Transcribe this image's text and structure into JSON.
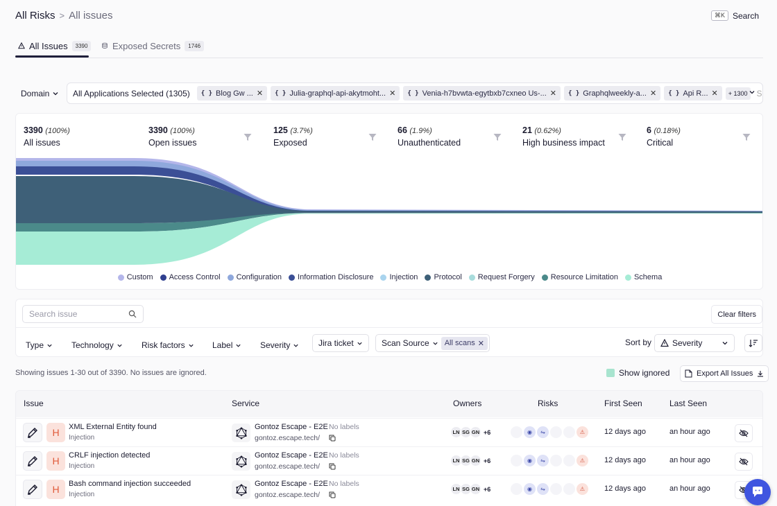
{
  "breadcrumb": {
    "root": "All Risks",
    "separator": ">",
    "current": "All issues"
  },
  "search": {
    "shortcut": "⌘K",
    "label": "Search"
  },
  "tabs": [
    {
      "label": "All Issues",
      "count": "3390",
      "icon": "warning-triangle-icon",
      "active": true
    },
    {
      "label": "Exposed Secrets",
      "count": "1746",
      "icon": "database-icon",
      "active": false
    }
  ],
  "domain": {
    "label": "Domain"
  },
  "applications": {
    "summary": "All Applications Selected (1305)",
    "chips": [
      "Blog Gw ...",
      "Julia-graphql-api-akytmoht...",
      "Venia-h7bvwta-egytbxb7cxneo Us-...",
      "Graphqlweekly-a...",
      "Api R..."
    ],
    "more": "+ 1300",
    "search_placeholder": "Se"
  },
  "funnel": {
    "stats": [
      {
        "value": "3390",
        "pct": "(100%)",
        "label": "All issues"
      },
      {
        "value": "3390",
        "pct": "(100%)",
        "label": "Open issues"
      },
      {
        "value": "125",
        "pct": "(3.7%)",
        "label": "Exposed"
      },
      {
        "value": "66",
        "pct": "(1.9%)",
        "label": "Unauthenticated"
      },
      {
        "value": "21",
        "pct": "(0.62%)",
        "label": "High business impact"
      },
      {
        "value": "6",
        "pct": "(0.18%)",
        "label": "Critical"
      }
    ],
    "legend": [
      {
        "label": "Custom",
        "color": "#b4b6ea"
      },
      {
        "label": "Access Control",
        "color": "#2f3f8f"
      },
      {
        "label": "Configuration",
        "color": "#8fa8dc"
      },
      {
        "label": "Information Disclosure",
        "color": "#3b4f96"
      },
      {
        "label": "Injection",
        "color": "#a9d4ee"
      },
      {
        "label": "Protocol",
        "color": "#3e6078"
      },
      {
        "label": "Request Forgery",
        "color": "#a8dcdc"
      },
      {
        "label": "Resource Limitation",
        "color": "#4b8a8a"
      },
      {
        "label": "Schema",
        "color": "#a6ecd6"
      }
    ]
  },
  "filters": {
    "search_placeholder": "Search issue",
    "clear": "Clear filters",
    "buttons": [
      "Type",
      "Technology",
      "Risk factors",
      "Label",
      "Severity"
    ],
    "jira": "Jira ticket",
    "scan_source": "Scan Source",
    "all_scans": "All scans",
    "sort_by": "Sort by",
    "sort_value": "Severity"
  },
  "summary": {
    "showing": "Showing issues 1-30 out of 3390. No issues are ignored.",
    "show_ignored": "Show ignored",
    "export": "Export All Issues"
  },
  "table": {
    "headers": [
      "Issue",
      "Service",
      "Owners",
      "Risks",
      "First Seen",
      "Last Seen"
    ],
    "rows": [
      {
        "severity": "H",
        "title": "XML External Entity found",
        "category": "Injection",
        "service": "Gontoz Escape - E2E",
        "labels": "No labels",
        "url": "gontoz.escape.tech/",
        "owners": [
          "LN",
          "SG",
          "GN"
        ],
        "owners_more": "+6",
        "first_seen": "12 days ago",
        "last_seen": "an hour ago"
      },
      {
        "severity": "H",
        "title": "CRLF injection detected",
        "category": "Injection",
        "service": "Gontoz Escape - E2E",
        "labels": "No labels",
        "url": "gontoz.escape.tech/",
        "owners": [
          "LN",
          "SG",
          "GN"
        ],
        "owners_more": "+6",
        "first_seen": "12 days ago",
        "last_seen": "an hour ago"
      },
      {
        "severity": "H",
        "title": "Bash command injection succeeded",
        "category": "Injection",
        "service": "Gontoz Escape - E2E",
        "labels": "No labels",
        "url": "gontoz.escape.tech/",
        "owners": [
          "LN",
          "SG",
          "GN"
        ],
        "owners_more": "+6",
        "first_seen": "12 days ago",
        "last_seen": "an hour ago"
      }
    ]
  },
  "colors": {
    "accent": "#3f55e0",
    "high_severity": "#e05a3a",
    "high_severity_bg": "#fbe2dc"
  }
}
